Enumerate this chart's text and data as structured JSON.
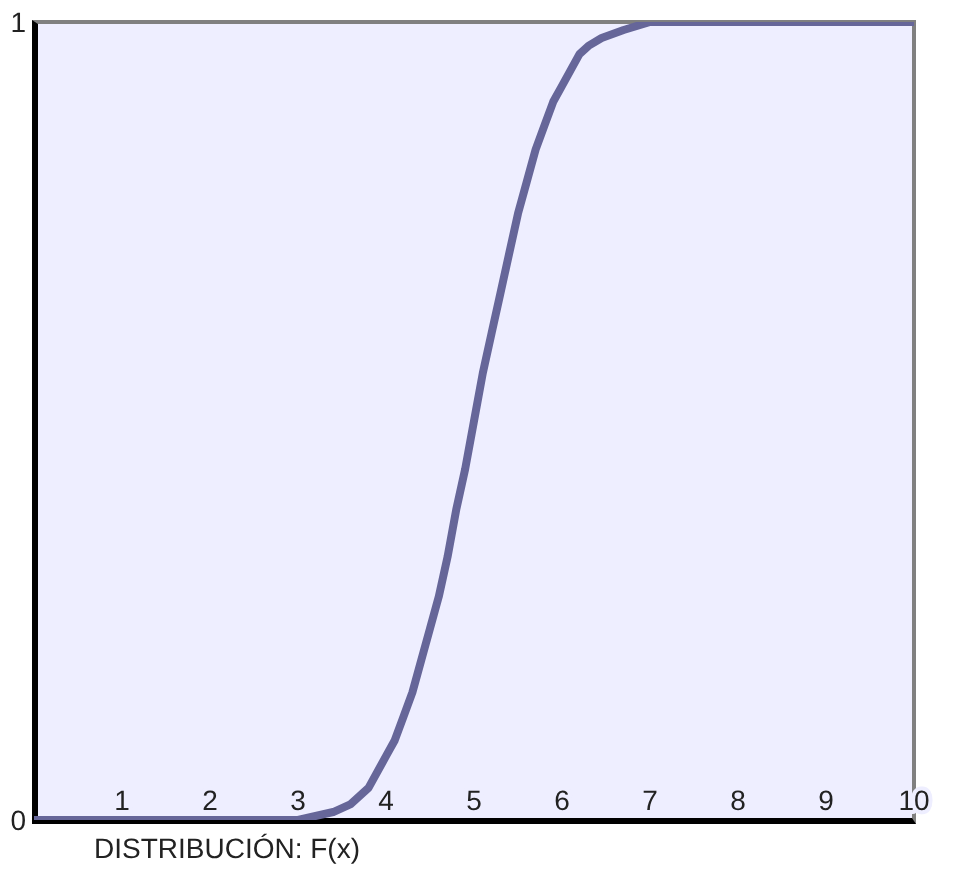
{
  "chart_data": {
    "type": "line",
    "xlabel": "DISTRIBUCIÓN: F(x)",
    "x": [
      0,
      1,
      2,
      2.5,
      3,
      3.4,
      3.6,
      3.8,
      4,
      4.1,
      4.2,
      4.3,
      4.4,
      4.5,
      4.6,
      4.7,
      4.8,
      4.9,
      5,
      5.1,
      5.2,
      5.3,
      5.4,
      5.5,
      5.6,
      5.7,
      5.8,
      5.9,
      6,
      6.1,
      6.2,
      6.3,
      6.45,
      6.7,
      7,
      7.5,
      8,
      9,
      10
    ],
    "values": [
      0,
      0,
      0,
      0,
      0,
      0.01,
      0.02,
      0.04,
      0.08,
      0.1,
      0.13,
      0.16,
      0.2,
      0.24,
      0.28,
      0.33,
      0.39,
      0.44,
      0.5,
      0.56,
      0.61,
      0.66,
      0.71,
      0.76,
      0.8,
      0.84,
      0.87,
      0.9,
      0.92,
      0.94,
      0.96,
      0.97,
      0.98,
      0.99,
      1,
      1,
      1,
      1,
      1
    ],
    "color": "#666699",
    "xlim": [
      0,
      10
    ],
    "ylim": [
      0,
      1
    ],
    "xticks": [
      1,
      2,
      3,
      4,
      5,
      6,
      7,
      8,
      9,
      10
    ],
    "yticks": [
      0,
      1
    ]
  }
}
